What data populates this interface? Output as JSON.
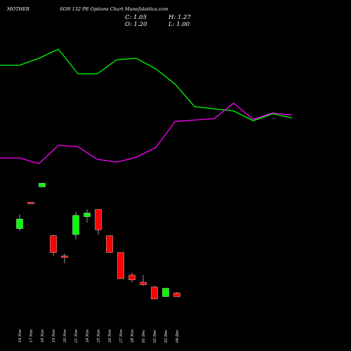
{
  "header": {
    "title_left": "MOTHER",
    "title_right": "SON 132 PE Options Chart Munafaloitics.com",
    "close_label": "C: 1.05",
    "open_label": "O: 1.20",
    "high_label": "H: 1.27",
    "low_label": "L: 1.00"
  },
  "chart_data": [
    {
      "type": "line",
      "series": [
        {
          "color": "#00ff00",
          "values": [
            93,
            93,
            83,
            70,
            105,
            105,
            85,
            83,
            98,
            120,
            152,
            155,
            158,
            172,
            162,
            168
          ]
        },
        {
          "color": "#ff00ff",
          "values": [
            225,
            225,
            233,
            207,
            209,
            227,
            231,
            224,
            210,
            173,
            171,
            169,
            147,
            170,
            161,
            164
          ]
        }
      ],
      "grid": false
    },
    {
      "type": "candlestick",
      "categories": [
        "14 Nov",
        "17 Nov",
        "18 Nov",
        "19 Nov",
        "20 Nov",
        "21 Nov",
        "24 Nov",
        "25 Nov",
        "26 Nov",
        "27 Nov",
        "28 Nov",
        "01 Dec",
        "02 Dec",
        "03 Dec",
        "04 Dec"
      ],
      "candles": [
        {
          "open": 0.42,
          "high": 0.54,
          "low": 0.4,
          "close": 0.5,
          "color": "#00ff00"
        },
        {
          "open": 0.64,
          "high": 0.64,
          "low": 0.63,
          "close": 0.63,
          "color": "#ff0000"
        },
        {
          "open": 0.77,
          "high": 0.8,
          "low": 0.77,
          "close": 0.8,
          "color": "#00ff00"
        },
        {
          "open": 0.36,
          "high": 0.37,
          "low": 0.19,
          "close": 0.22,
          "color": "#ff0000"
        },
        {
          "open": 0.19,
          "high": 0.21,
          "low": 0.13,
          "close": 0.19,
          "color": "#ff0000"
        },
        {
          "open": 0.37,
          "high": 0.56,
          "low": 0.33,
          "close": 0.53,
          "color": "#00ff00"
        },
        {
          "open": 0.52,
          "high": 0.58,
          "low": 0.47,
          "close": 0.55,
          "color": "#00ff00"
        },
        {
          "open": 0.58,
          "high": 0.58,
          "low": 0.37,
          "close": 0.41,
          "color": "#ff0000"
        },
        {
          "open": 0.36,
          "high": 0.36,
          "low": 0.22,
          "close": 0.22,
          "color": "#ff0000"
        },
        {
          "open": 0.22,
          "high": 0.22,
          "low": 0.0,
          "close": 0.0,
          "color": "#ff0000"
        },
        {
          "open": 0.03,
          "high": 0.05,
          "low": -0.03,
          "close": -0.01,
          "color": "#ff0000"
        },
        {
          "open": -0.03,
          "high": 0.03,
          "low": -0.06,
          "close": -0.05,
          "color": "#ff0000"
        },
        {
          "open": -0.07,
          "high": -0.06,
          "low": -0.17,
          "close": -0.17,
          "color": "#ff0000"
        },
        {
          "open": -0.08,
          "high": -0.08,
          "low": -0.15,
          "close": -0.15,
          "color": "#00ff00"
        },
        {
          "open": -0.12,
          "high": -0.11,
          "low": -0.15,
          "close": -0.15,
          "color": "#ff0000"
        }
      ],
      "grid": false
    }
  ]
}
